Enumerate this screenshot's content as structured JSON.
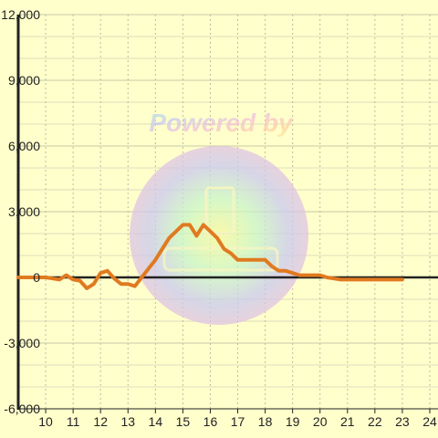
{
  "chart_data": {
    "type": "line",
    "title": "",
    "xlabel": "",
    "ylabel": "",
    "xlim": [
      9.0,
      24.3
    ],
    "ylim": [
      -6000,
      12000
    ],
    "x_ticks": [
      10,
      11,
      12,
      13,
      14,
      15,
      16,
      17,
      18,
      19,
      20,
      21,
      22,
      23,
      24
    ],
    "y_ticks": [
      -6000,
      -3000,
      0,
      3000,
      6000,
      9000,
      12000
    ],
    "y_tick_labels": [
      "-6,000",
      "-3,000",
      "0",
      "3,000",
      "6,000",
      "9,000",
      "12,000"
    ],
    "grid": true,
    "series": [
      {
        "color": "#e07a20",
        "x": [
          9.0,
          9.5,
          10.0,
          10.25,
          10.5,
          10.75,
          11.0,
          11.25,
          11.5,
          11.75,
          12.0,
          12.25,
          12.5,
          12.75,
          13.0,
          13.25,
          13.5,
          13.75,
          14.0,
          14.25,
          14.5,
          14.75,
          15.0,
          15.25,
          15.5,
          15.75,
          16.0,
          16.25,
          16.5,
          16.75,
          17.0,
          17.25,
          17.5,
          17.75,
          18.0,
          18.25,
          18.5,
          18.75,
          19.0,
          19.25,
          19.5,
          19.75,
          20.0,
          20.25,
          20.5,
          20.75,
          21.0,
          21.25,
          21.5,
          21.75,
          22.0,
          22.5,
          23.0
        ],
        "y": [
          0,
          0,
          0,
          -50,
          -100,
          100,
          -100,
          -150,
          -500,
          -300,
          200,
          300,
          -50,
          -300,
          -300,
          -400,
          0,
          400,
          800,
          1300,
          1800,
          2100,
          2400,
          2400,
          1900,
          2400,
          2100,
          1800,
          1300,
          1100,
          800,
          800,
          800,
          800,
          800,
          500,
          300,
          300,
          200,
          100,
          100,
          100,
          100,
          0,
          -50,
          -100,
          -100,
          -100,
          -100,
          -100,
          -100,
          -100,
          -100
        ]
      }
    ]
  },
  "watermark": {
    "text": "Powered by",
    "colors": [
      "#aee8e0",
      "#c9c9f0",
      "#f5c0d8",
      "#ffd0a0",
      "#f7f7a0"
    ]
  }
}
